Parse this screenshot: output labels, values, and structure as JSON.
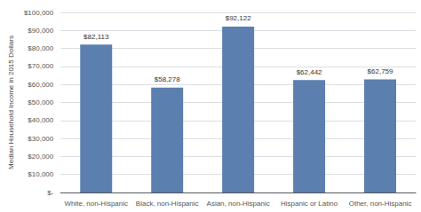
{
  "chart_data": {
    "type": "bar",
    "categories": [
      "White, non-Hispanic",
      "Black, non-Hispanic",
      "Asian, non-Hispanic",
      "Hispanic or Latino",
      "Other, non-Hispanic"
    ],
    "values": [
      82113,
      58278,
      92122,
      62442,
      62759
    ],
    "value_labels": [
      "$82,113",
      "$58,278",
      "$92,122",
      "$62,442",
      "$62,759"
    ],
    "data_labels": true,
    "color": "#5b7faf",
    "ylabel": "Median Household Income in 2015 Dollars",
    "ylim": [
      0,
      100000
    ],
    "yticks": [
      {
        "value": 0,
        "label": "$-"
      },
      {
        "value": 10000,
        "label": "$10,000"
      },
      {
        "value": 20000,
        "label": "$20,000"
      },
      {
        "value": 30000,
        "label": "$30,000"
      },
      {
        "value": 40000,
        "label": "$40,000"
      },
      {
        "value": 50000,
        "label": "$50,000"
      },
      {
        "value": 60000,
        "label": "$60,000"
      },
      {
        "value": 70000,
        "label": "$70,000"
      },
      {
        "value": 80000,
        "label": "$80,000"
      },
      {
        "value": 90000,
        "label": "$90,000"
      },
      {
        "value": 100000,
        "label": "$100,000"
      }
    ],
    "grid": true
  }
}
